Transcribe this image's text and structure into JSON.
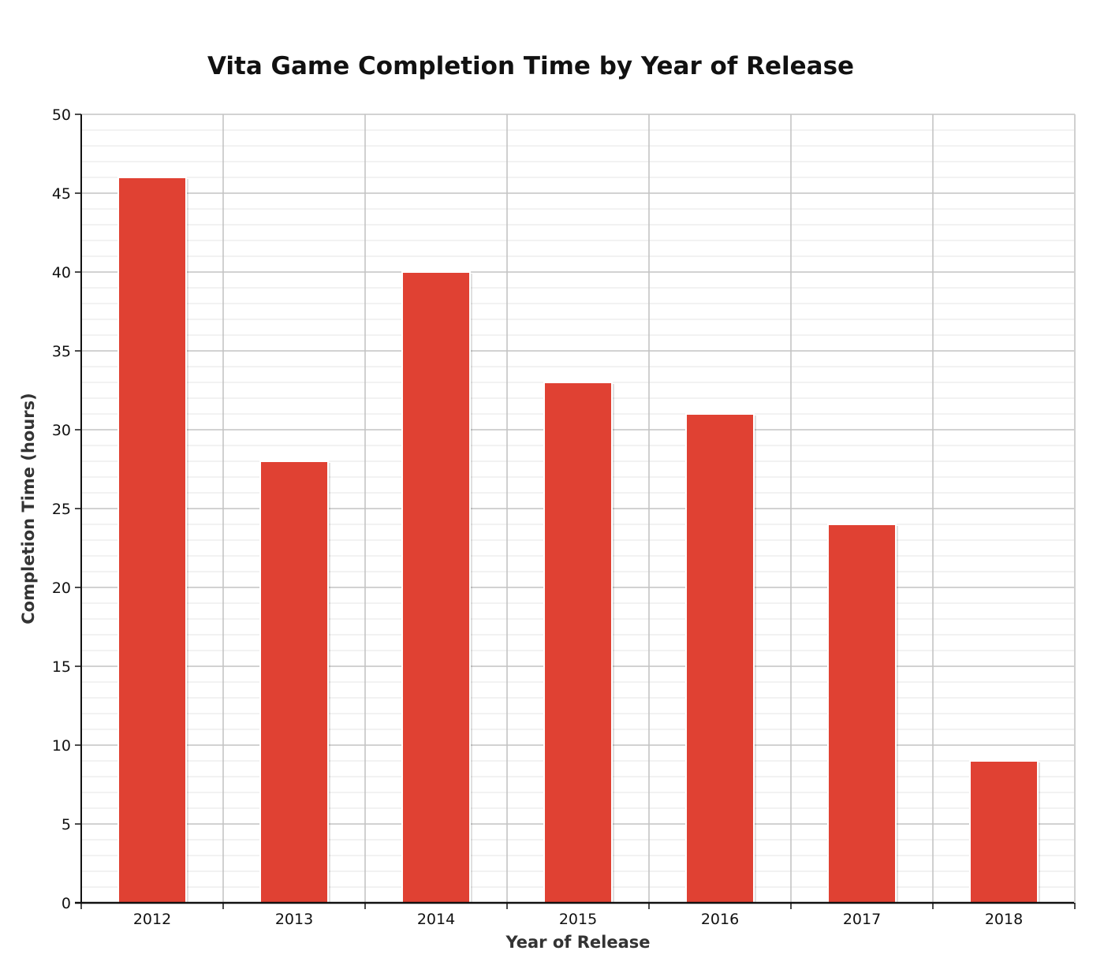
{
  "chart_data": {
    "type": "bar",
    "title": "Vita Game Completion Time by Year of Release",
    "xlabel": "Year of Release",
    "ylabel": "Completion Time (hours)",
    "categories": [
      "2012",
      "2013",
      "2014",
      "2015",
      "2016",
      "2017",
      "2018"
    ],
    "values": [
      46,
      28,
      40,
      33,
      31,
      24,
      9
    ],
    "ylim": [
      0,
      50
    ],
    "yticks": [
      "0",
      "5",
      "10",
      "15",
      "20",
      "25",
      "30",
      "35",
      "40",
      "45",
      "50"
    ],
    "grid": true,
    "legend": "none",
    "bar_color": "#e04133"
  }
}
